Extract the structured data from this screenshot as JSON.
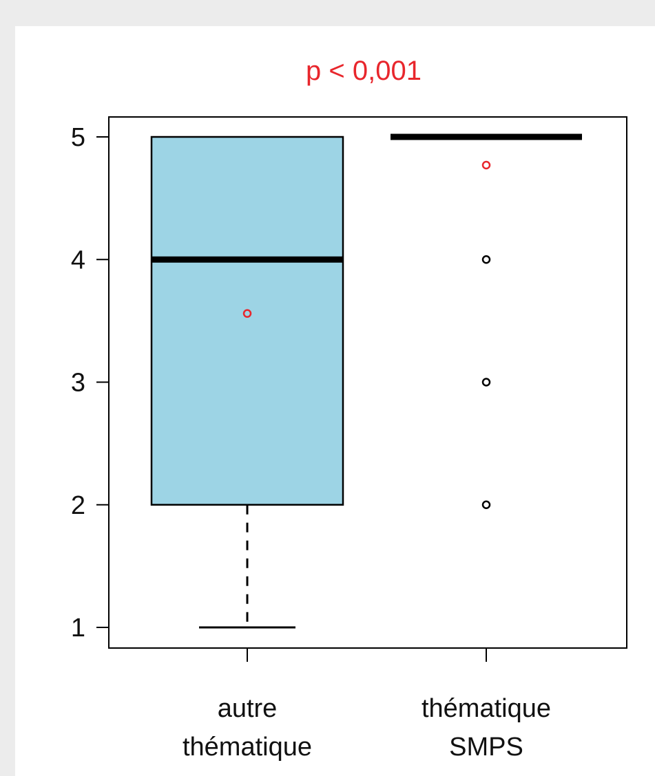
{
  "chart_data": {
    "type": "boxplot",
    "title": "p < 0,001",
    "xlabel": "",
    "ylabel": "",
    "ylim": [
      0.875,
      5.1
    ],
    "yticks": [
      1,
      2,
      3,
      4,
      5
    ],
    "grid": false,
    "categories": [
      [
        "autre",
        "thématique"
      ],
      [
        "thématique",
        "SMPS"
      ]
    ],
    "boxes": [
      {
        "min": 1,
        "q1": 2,
        "median": 4,
        "q3": 5,
        "max": 5,
        "mean": 3.56,
        "outliers": []
      },
      {
        "min": 5,
        "q1": 5,
        "median": 5,
        "q3": 5,
        "max": 5,
        "mean": 4.77,
        "outliers": [
          4,
          3,
          2
        ]
      }
    ],
    "colors": {
      "box_fill": "#9dd4e5",
      "box_stroke": "#000000",
      "mean_marker": "#e8262c",
      "outlier_marker": "#000000",
      "title": "#e8262c"
    }
  }
}
